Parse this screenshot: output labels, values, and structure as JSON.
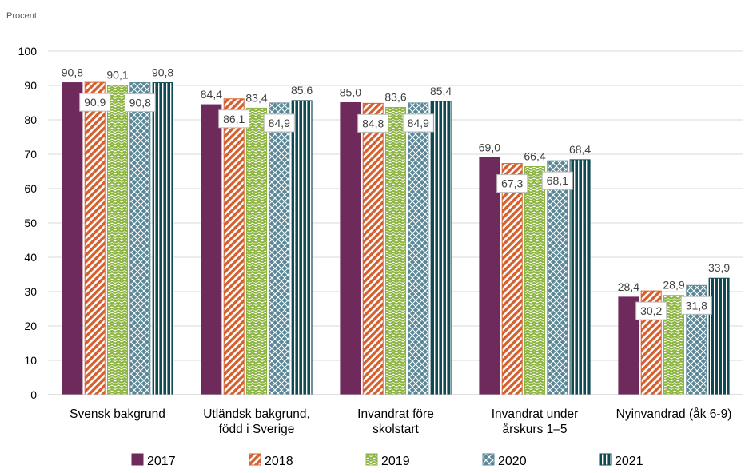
{
  "chart_data": {
    "type": "bar",
    "ylabel": "Procent",
    "ylim": [
      0,
      100
    ],
    "yticks": [
      "0",
      "10",
      "20",
      "30",
      "40",
      "50",
      "60",
      "70",
      "80",
      "90",
      "100"
    ],
    "grid": true,
    "legend_position": "bottom",
    "categories": [
      [
        "Svensk bakgrund"
      ],
      [
        "Utländsk bakgrund,",
        "född i Sverige"
      ],
      [
        "Invandrat före",
        "skolstart"
      ],
      [
        "Invandrat under",
        "årskurs 1–5"
      ],
      [
        "Nyinvandrad (åk 6-9)"
      ]
    ],
    "series": [
      {
        "name": "2017",
        "color": "#6e2a5a",
        "pattern": "solid",
        "values": [
          90.8,
          84.4,
          85.0,
          69.0,
          28.4
        ],
        "labels": [
          "90,8",
          "84,4",
          "85,0",
          "69,0",
          "28,4"
        ]
      },
      {
        "name": "2018",
        "color": "#d4602f",
        "pattern": "diagonal-stripes",
        "values": [
          90.9,
          86.1,
          84.8,
          67.3,
          30.2
        ],
        "labels": [
          "90,9",
          "86,1",
          "84,8",
          "67,3",
          "30,2"
        ]
      },
      {
        "name": "2019",
        "color": "#8db542",
        "pattern": "zigzag",
        "values": [
          90.1,
          83.4,
          83.6,
          66.4,
          28.9
        ],
        "labels": [
          "90,1",
          "83,4",
          "83,6",
          "66,4",
          "28,9"
        ]
      },
      {
        "name": "2020",
        "color": "#5a8797",
        "pattern": "diamond-lattice",
        "values": [
          90.8,
          84.9,
          84.9,
          68.1,
          31.8
        ],
        "labels": [
          "90,8",
          "84,9",
          "84,9",
          "68,1",
          "31,8"
        ]
      },
      {
        "name": "2021",
        "color": "#0f4a52",
        "pattern": "vertical-stripes",
        "values": [
          90.8,
          85.6,
          85.4,
          68.4,
          33.9
        ],
        "labels": [
          "90,8",
          "85,6",
          "85,4",
          "68,4",
          "33,9"
        ]
      }
    ]
  }
}
